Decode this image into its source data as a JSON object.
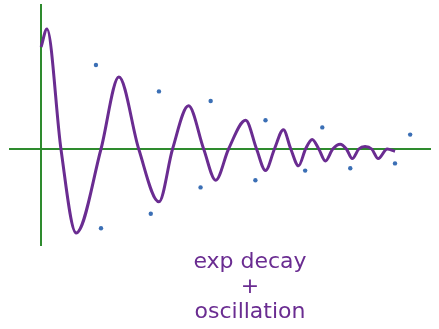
{
  "chart_data": {
    "type": "line",
    "annotations": [
      "exp decay",
      "+",
      "oscillation"
    ],
    "xlim": [
      -0.8,
      10
    ],
    "ylim": [
      -0.8,
      1.2
    ],
    "grid": false,
    "tick_labels": false,
    "series": [
      {
        "color": "#6a2c91",
        "marker": "none",
        "line_style": "solid",
        "x": [
          0,
          0.15,
          0.51,
          0.9,
          1.54,
          2.0,
          2.51,
          3.03,
          3.38,
          3.79,
          4.18,
          4.49,
          4.82,
          5.26,
          5.54,
          5.77,
          6.0,
          6.23,
          6.42,
          6.62,
          6.8,
          6.97,
          7.14,
          7.31,
          7.5,
          7.69,
          7.85,
          8.0,
          8.17,
          8.33,
          8.5,
          8.67,
          8.9,
          9.1
        ],
        "values": [
          0.85,
          1.0,
          0,
          -0.7,
          0,
          0.6,
          0,
          -0.44,
          0,
          0.36,
          0,
          -0.26,
          0,
          0.24,
          0,
          -0.18,
          0,
          0.16,
          0,
          -0.14,
          0,
          0.08,
          0,
          -0.1,
          0,
          0.04,
          0,
          -0.08,
          0,
          0.02,
          0,
          -0.08,
          0,
          -0.02
        ]
      },
      {
        "color": "#3b6fb5",
        "marker": "dot",
        "line_style": "none",
        "x": [
          1.41,
          3.03,
          4.36,
          5.77,
          7.23,
          9.49
        ],
        "values": [
          0.7,
          0.48,
          0.4,
          0.24,
          0.18,
          0.12
        ]
      },
      {
        "color": "#3b6fb5",
        "marker": "dot",
        "line_style": "none",
        "x": [
          1.54,
          2.82,
          4.1,
          5.51,
          6.79,
          7.95,
          9.1
        ],
        "values": [
          -0.66,
          -0.54,
          -0.32,
          -0.26,
          -0.18,
          -0.16,
          -0.12
        ]
      }
    ]
  }
}
